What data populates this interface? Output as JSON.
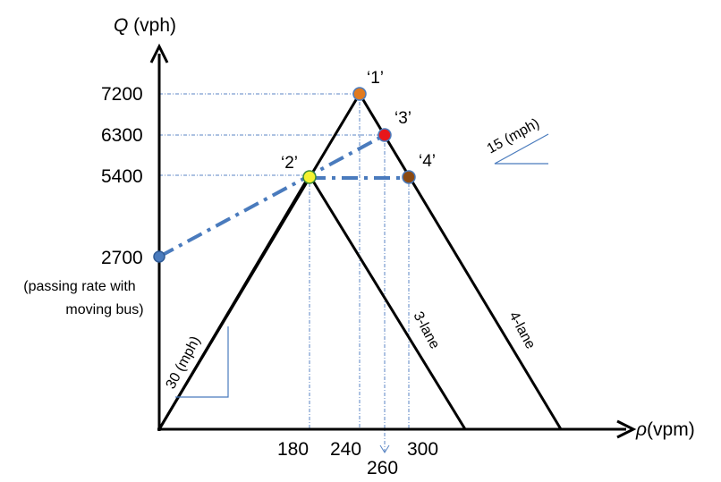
{
  "axes": {
    "y_label_var": "Q",
    "y_label_unit": " (vph)",
    "x_label_var": "ρ",
    "x_label_unit": "(vpm)"
  },
  "y_ticks": [
    "7200",
    "6300",
    "5400",
    "2700"
  ],
  "y_note": {
    "line1": "(passing rate with",
    "line2": "moving bus)"
  },
  "x_ticks": [
    "180",
    "240",
    "300",
    "260"
  ],
  "points": {
    "p1": "‘1’",
    "p2": "‘2’",
    "p3": "‘3’",
    "p4": "‘4’"
  },
  "line_labels": {
    "three_lane": "3-lane",
    "four_lane": "4-lane"
  },
  "slopes": {
    "left": "30 (mph)",
    "right": "15 (mph)"
  },
  "colors": {
    "axis": "#000000",
    "dash_line": "#4a7bbd",
    "point1": "#e07a1f",
    "point2": "#f5f230",
    "point3": "#e8161a",
    "point4": "#8b4a12",
    "point_q": "#4a7bbd",
    "guide": "#4a7bbd"
  }
}
